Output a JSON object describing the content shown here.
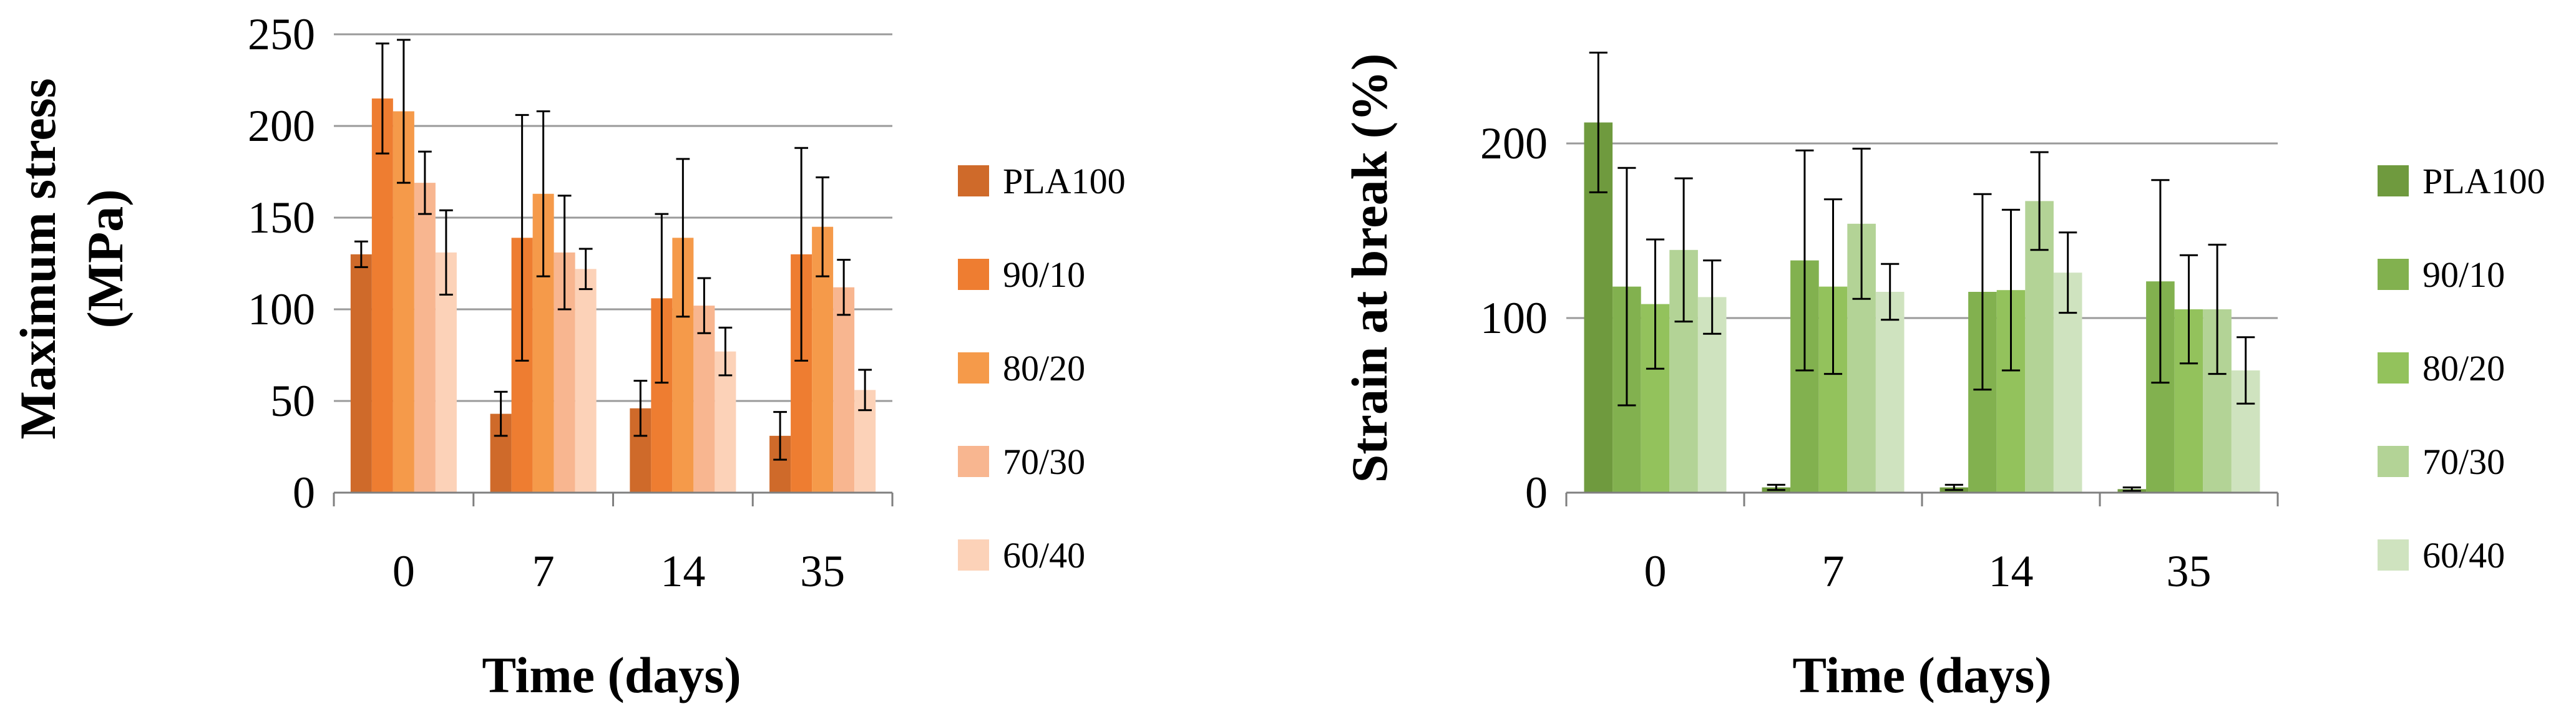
{
  "chart_data": [
    {
      "type": "bar",
      "title": "",
      "xlabel": "Time (days)",
      "ylabel_line1": "Maximum stress",
      "ylabel_line2": "(MPa)",
      "categories": [
        "0",
        "7",
        "14",
        "35"
      ],
      "ylim": [
        0,
        250
      ],
      "yticks": [
        "0",
        "50",
        "100",
        "150",
        "200",
        "250"
      ],
      "grid": true,
      "legend": "right",
      "series": [
        {
          "name": "PLA100",
          "color": "#cf6a2a",
          "values": [
            130,
            43,
            46,
            31
          ],
          "errors": [
            7,
            12,
            15,
            13
          ]
        },
        {
          "name": "90/10",
          "color": "#ee7d31",
          "values": [
            215,
            139,
            106,
            130
          ],
          "errors": [
            30,
            67,
            46,
            58
          ]
        },
        {
          "name": "80/20",
          "color": "#f59a4a",
          "values": [
            208,
            163,
            139,
            145
          ],
          "errors": [
            39,
            45,
            43,
            27
          ]
        },
        {
          "name": "70/30",
          "color": "#f8b690",
          "values": [
            169,
            131,
            102,
            112
          ],
          "errors": [
            17,
            31,
            15,
            15
          ]
        },
        {
          "name": "60/40",
          "color": "#fcd2b8",
          "values": [
            131,
            122,
            77,
            56
          ],
          "errors": [
            23,
            11,
            13,
            11
          ]
        }
      ]
    },
    {
      "type": "bar",
      "title": "",
      "xlabel": "Time (days)",
      "ylabel_line1": "Strain at break (%)",
      "categories": [
        "0",
        "7",
        "14",
        "35"
      ],
      "ylim": [
        0,
        260
      ],
      "yticks": [
        "0",
        "100",
        "200"
      ],
      "grid": true,
      "legend": "right",
      "series": [
        {
          "name": "PLA100",
          "color": "#6f9a3e",
          "values": [
            212,
            3,
            3,
            2
          ],
          "errors": [
            40,
            1.5,
            1.5,
            1
          ]
        },
        {
          "name": "90/10",
          "color": "#82b14f",
          "values": [
            118,
            133,
            115,
            121
          ],
          "errors": [
            68,
            63,
            56,
            58
          ]
        },
        {
          "name": "80/20",
          "color": "#93c25c",
          "values": [
            108,
            118,
            116,
            105
          ],
          "errors": [
            37,
            50,
            46,
            31
          ]
        },
        {
          "name": "70/30",
          "color": "#b3d396",
          "values": [
            139,
            154,
            167,
            105
          ],
          "errors": [
            41,
            43,
            28,
            37
          ]
        },
        {
          "name": "60/40",
          "color": "#cfe3bf",
          "values": [
            112,
            115,
            126,
            70
          ],
          "errors": [
            21,
            16,
            23,
            19
          ]
        }
      ]
    }
  ]
}
